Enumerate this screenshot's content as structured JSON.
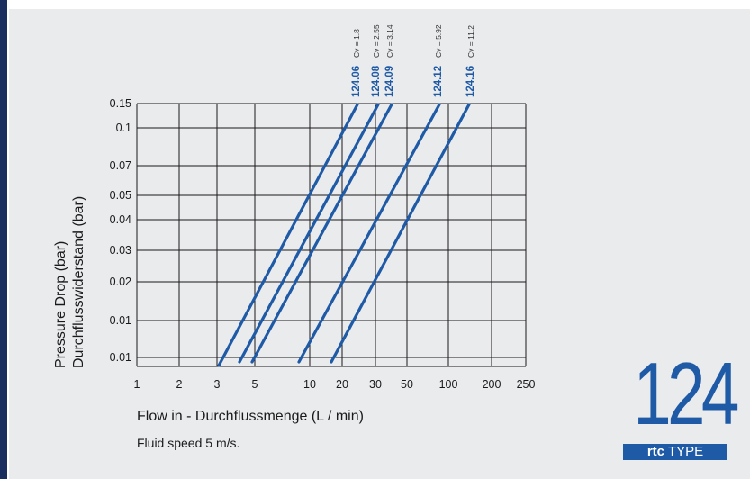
{
  "chart_data": {
    "type": "line",
    "title": "",
    "xlabel": "Flow in - Durchflussmenge (L / min)",
    "ylabel_line1": "Pressure Drop (bar)",
    "ylabel_line2": "Durchflusswiderstand (bar)",
    "note": "Fluid speed 5 m/s.",
    "x_scale": "log",
    "y_scale": "log",
    "xlim": [
      1,
      250
    ],
    "ylim": [
      0.01,
      0.15
    ],
    "grid": true,
    "x_ticks": [
      "1",
      "2",
      "3",
      "5",
      "10",
      "20",
      "30",
      "50",
      "100",
      "200",
      "250"
    ],
    "y_ticks": [
      "0.15",
      "0.1",
      "0.07",
      "0.05",
      "0.04",
      "0.03",
      "0.02",
      "0.01",
      "0.01"
    ],
    "series": [
      {
        "name": "124.06",
        "cv": "Cv = 1.8",
        "x": [
          3.0,
          24.5
        ],
        "y": [
          0.01,
          0.15
        ]
      },
      {
        "name": "124.08",
        "cv": "Cv = 2.55",
        "x": [
          4.2,
          33.0
        ],
        "y": [
          0.01,
          0.15
        ]
      },
      {
        "name": "124.09",
        "cv": "Cv = 3.14",
        "x": [
          5.0,
          40.0
        ],
        "y": [
          0.01,
          0.15
        ]
      },
      {
        "name": "124.12",
        "cv": "Cv = 5.92",
        "x": [
          9.2,
          78.0
        ],
        "y": [
          0.01,
          0.15
        ]
      },
      {
        "name": "124.16",
        "cv": "Cv = 11.2",
        "x": [
          15.5,
          128.0
        ],
        "y": [
          0.01,
          0.15
        ]
      }
    ]
  },
  "colors": {
    "line": "#1f5aa6",
    "grid": "#1a1a1a",
    "panel": "#eaebed",
    "accent_bar": "#1b2f5e"
  },
  "logo": {
    "number": "124",
    "brand": "rtc",
    "type": "TYPE"
  }
}
